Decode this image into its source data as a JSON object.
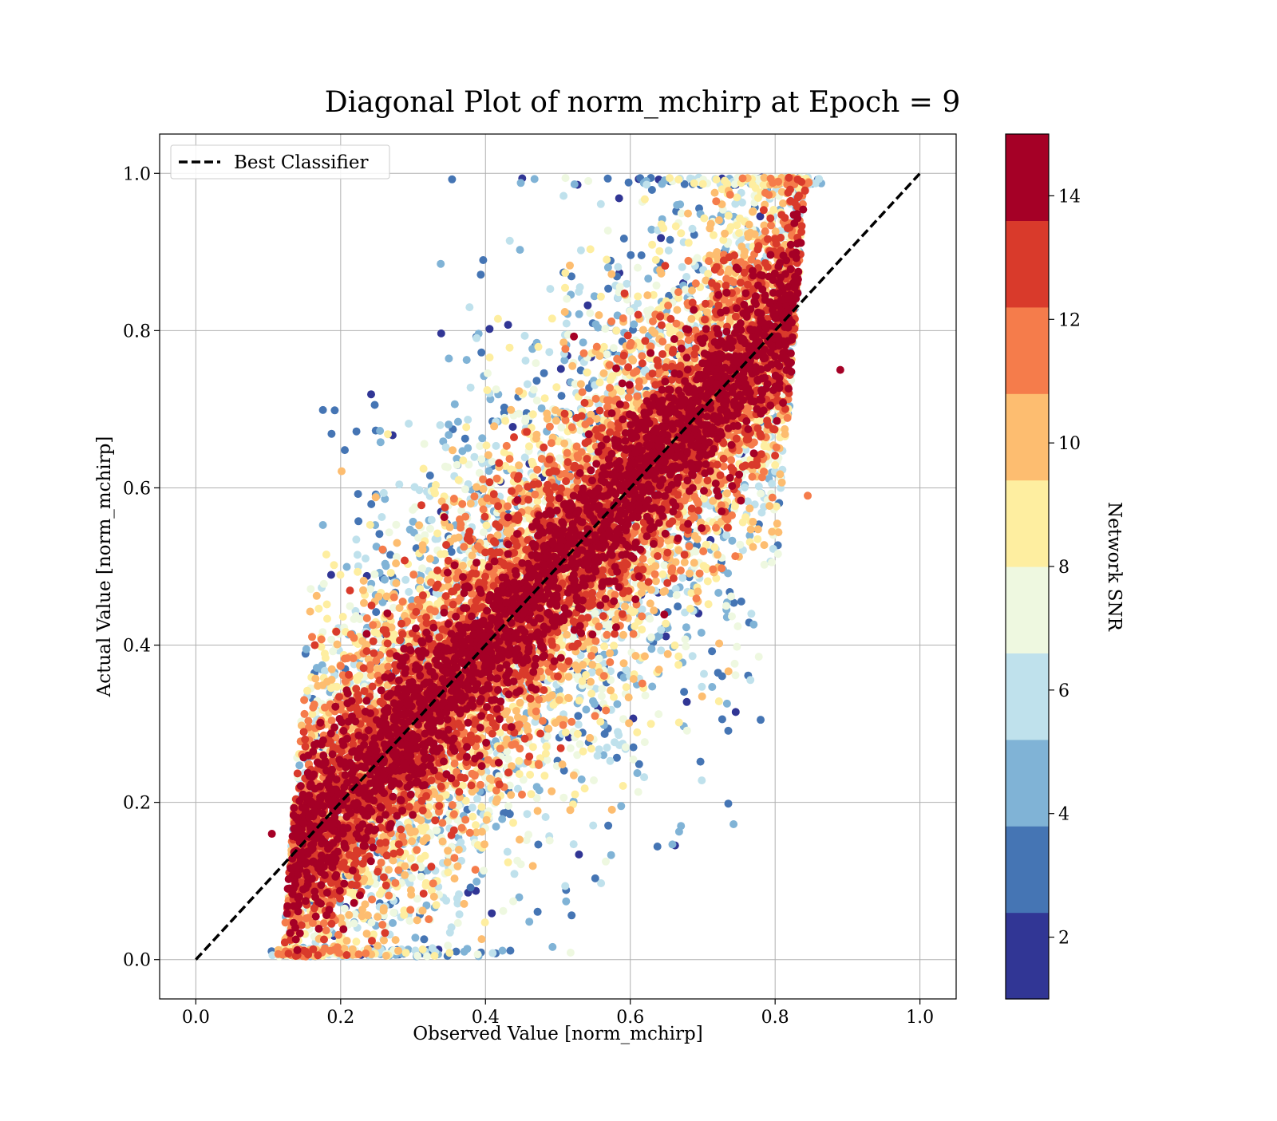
{
  "chart_data": {
    "type": "scatter",
    "title": "Diagonal Plot of norm_mchirp at Epoch = 9",
    "xlabel": "Observed Value [norm_mchirp]",
    "ylabel": "Actual Value [norm_mchirp]",
    "xlim": [
      -0.05,
      1.05
    ],
    "ylim": [
      -0.05,
      1.05
    ],
    "x_ticks": [
      "0.0",
      "0.2",
      "0.4",
      "0.6",
      "0.8",
      "1.0"
    ],
    "y_ticks": [
      "0.0",
      "0.2",
      "0.4",
      "0.6",
      "0.8",
      "1.0"
    ],
    "grid": true,
    "legend": {
      "position": "top-left",
      "entries": [
        "Best Classifier"
      ]
    },
    "reference_line": {
      "name": "Best Classifier",
      "style": "dashed",
      "color": "#000000",
      "x": [
        0.0,
        1.0
      ],
      "y": [
        0.0,
        1.0
      ]
    },
    "colorbar": {
      "label": "Network SNR",
      "range": [
        1,
        15
      ],
      "ticks": [
        "2",
        "4",
        "6",
        "8",
        "10",
        "12",
        "14"
      ],
      "levels": 10,
      "colormap": [
        "#313695",
        "#4575b4",
        "#80b3d6",
        "#bfe1ec",
        "#eef8e0",
        "#feeea0",
        "#fdbd70",
        "#f57c4b",
        "#d93a2b",
        "#a50026"
      ]
    },
    "scatter_summary": {
      "description_of_marks": "dense cloud of points spread around the y = x diagonal, colored by Network SNR",
      "x_range": [
        0.1,
        0.9
      ],
      "y_range": [
        0.0,
        1.0
      ],
      "outliers": [
        {
          "x": 0.78,
          "y": 0.305,
          "snr": 3
        },
        {
          "x": 0.67,
          "y": 0.17,
          "snr": 4
        },
        {
          "x": 0.89,
          "y": 0.75,
          "snr": 14
        },
        {
          "x": 0.105,
          "y": 0.16,
          "snr": 14
        },
        {
          "x": 0.845,
          "y": 0.59,
          "snr": 12
        }
      ]
    }
  }
}
